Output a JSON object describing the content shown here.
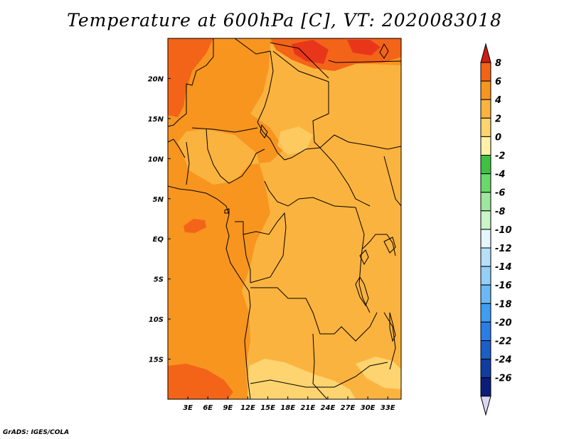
{
  "title": "Temperature at 600hPa [C], VT: 2020083018",
  "credit": "GrADS: IGES/COLA",
  "map": {
    "lon_range": [
      0,
      35
    ],
    "lat_range": [
      -20,
      25
    ],
    "lon_ticks": [
      3,
      6,
      9,
      12,
      15,
      18,
      21,
      24,
      27,
      30,
      33
    ],
    "lon_tick_labels": [
      "3E",
      "6E",
      "9E",
      "12E",
      "15E",
      "18E",
      "21E",
      "24E",
      "27E",
      "30E",
      "33E"
    ],
    "lat_ticks": [
      20,
      15,
      10,
      5,
      0,
      -5,
      -10,
      -15
    ],
    "lat_tick_labels": [
      "20N",
      "15N",
      "10N",
      "5N",
      "EQ",
      "5S",
      "10S",
      "15S"
    ]
  },
  "colorbar": {
    "labels": [
      "8",
      "6",
      "4",
      "2",
      "0",
      "-2",
      "-4",
      "-6",
      "-8",
      "-10",
      "-12",
      "-14",
      "-16",
      "-18",
      "-20",
      "-22",
      "-24",
      "-26"
    ],
    "colors": [
      "#e8361b",
      "#f36418",
      "#f8951f",
      "#fbb33f",
      "#fdd46f",
      "#fff2a8",
      "#3fc043",
      "#6ad96b",
      "#9ee79e",
      "#c9f5c9",
      "#e6f6ff",
      "#b6dff9",
      "#94cff7",
      "#6ab9f5",
      "#3f9df3",
      "#2b7de6",
      "#1c5ec8",
      "#0f3da2",
      "#0a1d7a"
    ],
    "top_arrow_color": "#cc1f12",
    "bottom_arrow_color": "#dcd6f3"
  }
}
